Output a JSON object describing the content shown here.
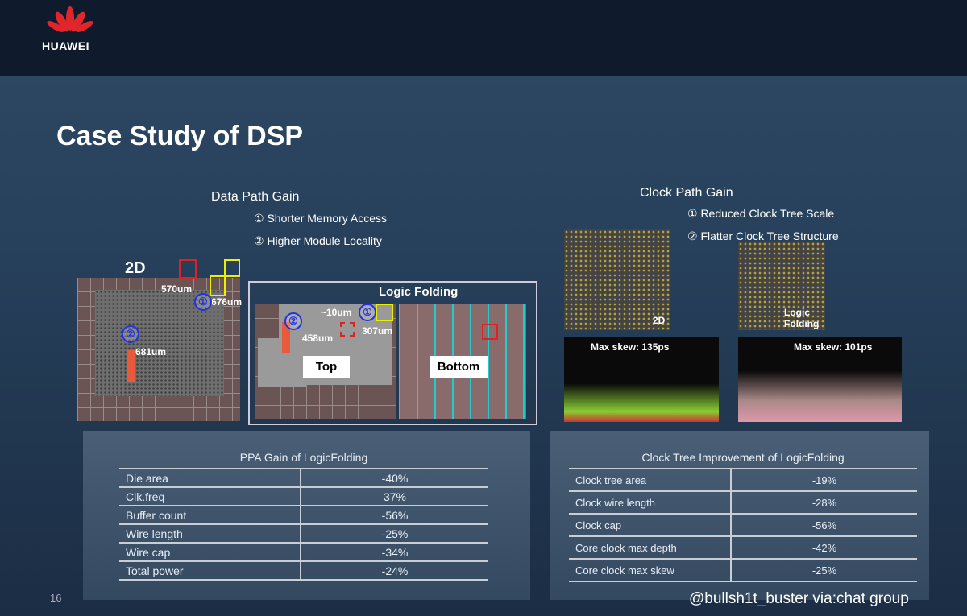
{
  "header": {
    "brand": "HUAWEI"
  },
  "title": "Case Study of DSP",
  "data_path": {
    "heading": "Data Path Gain",
    "points": [
      "① Shorter Memory Access",
      "② Higher Module Locality"
    ]
  },
  "clock_path": {
    "heading": "Clock Path Gain",
    "points": [
      "① Reduced Clock Tree Scale",
      "② Flatter Clock Tree Structure"
    ]
  },
  "layout_2d": {
    "label": "2D",
    "annotations": [
      "570um",
      "676um",
      "681um"
    ],
    "markers": [
      "①",
      "②"
    ]
  },
  "logic_folding": {
    "title": "Logic Folding",
    "annotations": [
      "~10um",
      "458um",
      "307um"
    ],
    "markers": [
      "②",
      "①"
    ],
    "top": "Top",
    "bottom": "Bottom"
  },
  "clock_images": {
    "labels": [
      "2D",
      "Logic Folding"
    ],
    "skews": [
      "Max skew: 135ps",
      "Max skew: 101ps"
    ]
  },
  "ppa_table": {
    "title": "PPA Gain of LogicFolding",
    "rows": [
      [
        "Die area",
        "-40%"
      ],
      [
        "Clk.freq",
        "37%"
      ],
      [
        "Buffer count",
        "-56%"
      ],
      [
        "Wire length",
        "-25%"
      ],
      [
        "Wire cap",
        "-34%"
      ],
      [
        "Total power",
        "-24%"
      ]
    ]
  },
  "clock_table": {
    "title": "Clock Tree Improvement of LogicFolding",
    "rows": [
      [
        "Clock tree area",
        "-19%"
      ],
      [
        "Clock wire length",
        "-28%"
      ],
      [
        "Clock cap",
        "-56%"
      ],
      [
        "Core clock max depth",
        "-42%"
      ],
      [
        "Core clock max skew",
        "-25%"
      ]
    ]
  },
  "footer": {
    "page": "16",
    "credit": "@bullsh1t_buster via:chat group"
  }
}
